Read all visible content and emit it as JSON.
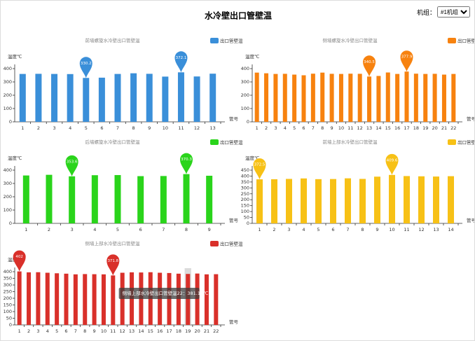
{
  "header": {
    "title": "水冷壁出口管壁温",
    "unit_label": "机组：",
    "unit_option": "#1机组"
  },
  "chart_data": [
    {
      "type": "bar",
      "title": "前墙螺旋水冷壁出口管壁温",
      "ylabel": "温度℃",
      "xlabel": "管号",
      "categories": [
        "1",
        "2",
        "3",
        "4",
        "5",
        "6",
        "7",
        "8",
        "9",
        "10",
        "11",
        "12",
        "13"
      ],
      "series": [
        {
          "name": "出口管壁温",
          "color": "#3a8fd9",
          "values": [
            360,
            361,
            360,
            359,
            330.2,
            332,
            360,
            365,
            361,
            340,
            372.1,
            341,
            362
          ]
        }
      ],
      "ylim": [
        0,
        400
      ],
      "yticks": [
        0,
        100,
        200,
        300,
        400
      ]
    },
    {
      "type": "bar",
      "title": "侧墙螺旋水冷壁出口管壁温",
      "ylabel": "温度℃",
      "xlabel": "管号",
      "categories": [
        "1",
        "2",
        "3",
        "4",
        "5",
        "6",
        "7",
        "8",
        "9",
        "10",
        "11",
        "12",
        "13",
        "14",
        "15",
        "16",
        "17",
        "18",
        "19",
        "20",
        "21",
        "22"
      ],
      "series": [
        {
          "name": "出口管壁温",
          "color": "#f7820f",
          "values": [
            370,
            365,
            360,
            361,
            355,
            350,
            362,
            370,
            361,
            360,
            362,
            361,
            340.5,
            345,
            371,
            360,
            377.9,
            362,
            360,
            361,
            355,
            360
          ]
        }
      ],
      "ylim": [
        0,
        400
      ],
      "yticks": [
        0,
        100,
        200,
        300,
        400
      ]
    },
    {
      "type": "bar",
      "title": "后墙螺旋水冷壁出口管壁温",
      "ylabel": "温度℃",
      "xlabel": "管号",
      "categories": [
        "1",
        "2",
        "3",
        "4",
        "5",
        "6",
        "7",
        "8",
        "9"
      ],
      "series": [
        {
          "name": "出口管壁温",
          "color": "#2ad41b",
          "values": [
            360,
            365,
            353.6,
            362,
            363,
            355,
            356,
            370.3,
            358
          ]
        }
      ],
      "ylim": [
        0,
        400
      ],
      "yticks": [
        0,
        100,
        200,
        300,
        400
      ]
    },
    {
      "type": "bar",
      "title": "前墙上部水冷壁出口管壁温",
      "ylabel": "温度℃",
      "xlabel": "管号",
      "categories": [
        "1",
        "2",
        "3",
        "4",
        "5",
        "6",
        "7",
        "8",
        "9",
        "10",
        "11",
        "12",
        "13",
        "14"
      ],
      "series": [
        {
          "name": "出口管壁温",
          "color": "#f7c116",
          "values": [
            372.5,
            373,
            376,
            380,
            374,
            375,
            381,
            376,
            395,
            409.6,
            400,
            398,
            396,
            399
          ]
        }
      ],
      "ylim": [
        0,
        450
      ],
      "yticks": [
        0,
        50,
        100,
        150,
        200,
        250,
        300,
        350,
        400,
        450
      ]
    },
    {
      "type": "bar",
      "title": "侧墙上部水冷壁出口管壁温",
      "ylabel": "温度",
      "xlabel": "管号",
      "categories": [
        "1",
        "2",
        "3",
        "4",
        "5",
        "6",
        "7",
        "8",
        "9",
        "10",
        "11",
        "12",
        "13",
        "14",
        "15",
        "16",
        "17",
        "18",
        "19",
        "20",
        "21",
        "22"
      ],
      "series": [
        {
          "name": "出口管壁温",
          "color": "#d9302a",
          "values": [
            402,
            395,
            396,
            392,
            388,
            385,
            380,
            382,
            381,
            380,
            371.8,
            392,
            395,
            394,
            396,
            392,
            390,
            385,
            383,
            386,
            380,
            381.15
          ]
        }
      ],
      "ylim": [
        0,
        400
      ],
      "yticks": [
        0,
        50,
        100,
        150,
        200,
        250,
        300,
        350,
        400
      ],
      "tooltip": "侧墙上部水冷壁出口管壁温22：381.15℃"
    }
  ]
}
